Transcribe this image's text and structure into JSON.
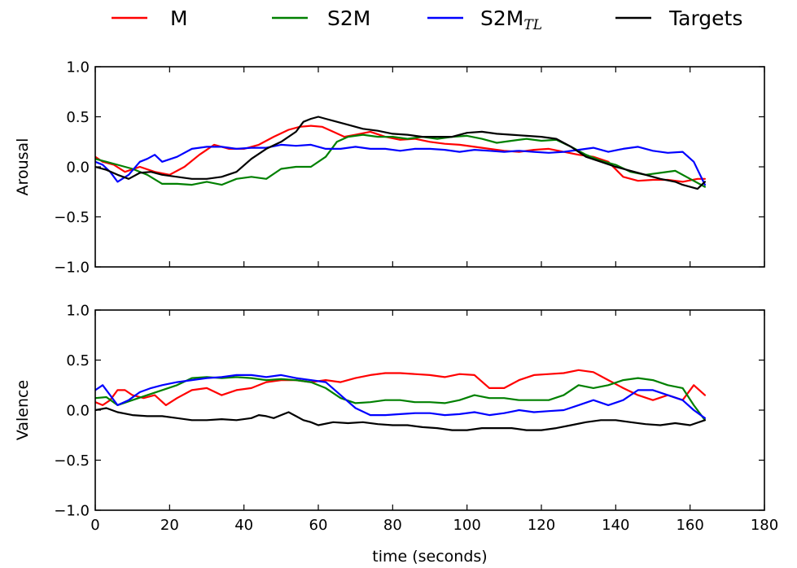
{
  "chart_data": {
    "type": "line",
    "xlabel": "time (seconds)",
    "xlim": [
      0,
      180
    ],
    "x_ticks": [
      0,
      20,
      40,
      60,
      80,
      100,
      120,
      140,
      160,
      180
    ],
    "grid": false,
    "legend": {
      "placement": "top",
      "entries": [
        {
          "key": "M",
          "label": "M",
          "color": "#ff0000"
        },
        {
          "key": "S2M",
          "label": "S2M",
          "color": "#008000"
        },
        {
          "key": "S2M_TL",
          "label": "S2M",
          "subscript": "TL",
          "color": "#0000ff"
        },
        {
          "key": "Targets",
          "label": "Targets",
          "color": "#000000"
        }
      ]
    },
    "panels": [
      {
        "ylabel": "Arousal",
        "ylim": [
          -1.0,
          1.0
        ],
        "y_ticks": [
          -1.0,
          -0.5,
          0.0,
          0.5,
          1.0
        ],
        "y_tick_labels": [
          "−1.0",
          "−0.5",
          "0.0",
          "0.5",
          "1.0"
        ],
        "show_x_tick_labels": false,
        "series": [
          {
            "key": "M",
            "color": "#ff0000",
            "x": [
              0,
              2,
              5,
              8,
              12,
              16,
              20,
              24,
              28,
              32,
              36,
              40,
              44,
              48,
              52,
              55,
              58,
              61,
              64,
              67,
              70,
              74,
              78,
              82,
              86,
              90,
              94,
              98,
              102,
              106,
              110,
              114,
              118,
              122,
              126,
              130,
              134,
              138,
              142,
              146,
              150,
              154,
              158,
              162,
              164
            ],
            "y": [
              0.1,
              0.05,
              0.02,
              -0.05,
              0.0,
              -0.05,
              -0.08,
              0.0,
              0.12,
              0.22,
              0.18,
              0.18,
              0.22,
              0.3,
              0.37,
              0.4,
              0.41,
              0.4,
              0.35,
              0.3,
              0.32,
              0.35,
              0.3,
              0.27,
              0.28,
              0.25,
              0.23,
              0.22,
              0.2,
              0.18,
              0.16,
              0.15,
              0.17,
              0.18,
              0.15,
              0.12,
              0.1,
              0.05,
              -0.1,
              -0.14,
              -0.13,
              -0.13,
              -0.15,
              -0.12,
              -0.12
            ]
          },
          {
            "key": "S2M",
            "color": "#008000",
            "x": [
              0,
              3,
              6,
              10,
              14,
              18,
              22,
              26,
              30,
              34,
              38,
              42,
              46,
              50,
              54,
              58,
              62,
              65,
              68,
              72,
              76,
              80,
              84,
              88,
              92,
              96,
              100,
              104,
              108,
              112,
              116,
              120,
              124,
              128,
              132,
              136,
              140,
              144,
              148,
              152,
              156,
              160,
              164
            ],
            "y": [
              0.08,
              0.05,
              0.02,
              -0.02,
              -0.08,
              -0.17,
              -0.17,
              -0.18,
              -0.15,
              -0.18,
              -0.12,
              -0.1,
              -0.12,
              -0.02,
              0.0,
              0.0,
              0.1,
              0.25,
              0.3,
              0.32,
              0.3,
              0.3,
              0.28,
              0.3,
              0.28,
              0.3,
              0.31,
              0.28,
              0.24,
              0.26,
              0.28,
              0.26,
              0.27,
              0.2,
              0.12,
              0.06,
              0.02,
              -0.05,
              -0.08,
              -0.06,
              -0.04,
              -0.12,
              -0.2
            ]
          },
          {
            "key": "S2M_TL",
            "color": "#0000ff",
            "x": [
              0,
              2,
              4,
              6,
              9,
              12,
              14,
              16,
              18,
              22,
              26,
              30,
              34,
              38,
              42,
              46,
              50,
              54,
              58,
              62,
              66,
              70,
              74,
              78,
              82,
              86,
              90,
              94,
              98,
              102,
              106,
              110,
              114,
              118,
              122,
              126,
              130,
              134,
              138,
              142,
              146,
              150,
              154,
              158,
              161,
              164
            ],
            "y": [
              0.05,
              0.02,
              -0.05,
              -0.15,
              -0.08,
              0.05,
              0.08,
              0.12,
              0.05,
              0.1,
              0.18,
              0.2,
              0.2,
              0.18,
              0.19,
              0.19,
              0.22,
              0.21,
              0.22,
              0.18,
              0.18,
              0.2,
              0.18,
              0.18,
              0.16,
              0.18,
              0.18,
              0.17,
              0.15,
              0.17,
              0.16,
              0.15,
              0.16,
              0.15,
              0.14,
              0.15,
              0.17,
              0.19,
              0.15,
              0.18,
              0.2,
              0.16,
              0.14,
              0.15,
              0.05,
              -0.18
            ]
          },
          {
            "key": "Targets",
            "color": "#000000",
            "x": [
              0,
              3,
              6,
              9,
              12,
              15,
              18,
              22,
              26,
              30,
              34,
              38,
              42,
              46,
              50,
              54,
              56,
              58,
              60,
              62,
              64,
              68,
              72,
              76,
              80,
              84,
              88,
              92,
              96,
              100,
              104,
              108,
              112,
              116,
              120,
              124,
              128,
              132,
              136,
              140,
              144,
              148,
              152,
              156,
              158,
              160,
              162,
              164
            ],
            "y": [
              0.0,
              -0.03,
              -0.08,
              -0.12,
              -0.06,
              -0.05,
              -0.08,
              -0.1,
              -0.12,
              -0.12,
              -0.1,
              -0.05,
              0.08,
              0.18,
              0.25,
              0.35,
              0.45,
              0.48,
              0.5,
              0.48,
              0.46,
              0.42,
              0.38,
              0.36,
              0.33,
              0.32,
              0.3,
              0.3,
              0.3,
              0.34,
              0.35,
              0.33,
              0.32,
              0.31,
              0.3,
              0.28,
              0.2,
              0.1,
              0.05,
              0.0,
              -0.04,
              -0.08,
              -0.12,
              -0.15,
              -0.18,
              -0.2,
              -0.22,
              -0.15
            ]
          }
        ]
      },
      {
        "ylabel": "Valence",
        "ylim": [
          -1.0,
          1.0
        ],
        "y_ticks": [
          -1.0,
          -0.5,
          0.0,
          0.5,
          1.0
        ],
        "y_tick_labels": [
          "−1.0",
          "−0.5",
          "0.0",
          "0.5",
          "1.0"
        ],
        "show_x_tick_labels": true,
        "x_tick_labels": [
          "0",
          "20",
          "40",
          "60",
          "80",
          "100",
          "120",
          "140",
          "160",
          "180"
        ],
        "series": [
          {
            "key": "M",
            "color": "#ff0000",
            "x": [
              0,
              2,
              4,
              6,
              8,
              10,
              13,
              16,
              19,
              22,
              26,
              30,
              34,
              38,
              42,
              46,
              50,
              54,
              58,
              62,
              66,
              70,
              74,
              78,
              82,
              86,
              90,
              94,
              98,
              102,
              106,
              110,
              114,
              118,
              122,
              126,
              130,
              134,
              138,
              142,
              146,
              150,
              154,
              158,
              161,
              164
            ],
            "y": [
              0.08,
              0.05,
              0.1,
              0.2,
              0.2,
              0.15,
              0.12,
              0.15,
              0.05,
              0.12,
              0.2,
              0.22,
              0.15,
              0.2,
              0.22,
              0.28,
              0.3,
              0.3,
              0.28,
              0.3,
              0.28,
              0.32,
              0.35,
              0.37,
              0.37,
              0.36,
              0.35,
              0.33,
              0.36,
              0.35,
              0.22,
              0.22,
              0.3,
              0.35,
              0.36,
              0.37,
              0.4,
              0.38,
              0.3,
              0.22,
              0.15,
              0.1,
              0.15,
              0.1,
              0.25,
              0.15
            ]
          },
          {
            "key": "S2M",
            "color": "#008000",
            "x": [
              0,
              3,
              6,
              10,
              14,
              18,
              22,
              26,
              30,
              34,
              38,
              42,
              46,
              50,
              54,
              58,
              62,
              66,
              70,
              74,
              78,
              82,
              86,
              90,
              94,
              98,
              102,
              106,
              110,
              114,
              118,
              122,
              126,
              130,
              134,
              138,
              142,
              146,
              150,
              154,
              158,
              161,
              164
            ],
            "y": [
              0.12,
              0.13,
              0.05,
              0.1,
              0.15,
              0.2,
              0.25,
              0.32,
              0.33,
              0.32,
              0.33,
              0.32,
              0.3,
              0.31,
              0.3,
              0.28,
              0.22,
              0.12,
              0.07,
              0.08,
              0.1,
              0.1,
              0.08,
              0.08,
              0.07,
              0.1,
              0.15,
              0.12,
              0.12,
              0.1,
              0.1,
              0.1,
              0.15,
              0.25,
              0.22,
              0.25,
              0.3,
              0.32,
              0.3,
              0.25,
              0.22,
              0.05,
              -0.1
            ]
          },
          {
            "key": "S2M_TL",
            "color": "#0000ff",
            "x": [
              0,
              2,
              4,
              6,
              9,
              12,
              15,
              18,
              22,
              26,
              30,
              34,
              38,
              42,
              46,
              50,
              54,
              58,
              62,
              66,
              70,
              74,
              78,
              82,
              86,
              90,
              94,
              98,
              102,
              106,
              110,
              114,
              118,
              122,
              126,
              130,
              134,
              138,
              142,
              146,
              150,
              154,
              158,
              161,
              164
            ],
            "y": [
              0.2,
              0.25,
              0.15,
              0.05,
              0.1,
              0.18,
              0.22,
              0.25,
              0.28,
              0.3,
              0.32,
              0.33,
              0.35,
              0.35,
              0.33,
              0.35,
              0.32,
              0.3,
              0.28,
              0.15,
              0.02,
              -0.05,
              -0.05,
              -0.04,
              -0.03,
              -0.03,
              -0.05,
              -0.04,
              -0.02,
              -0.05,
              -0.03,
              0.0,
              -0.02,
              -0.01,
              0.0,
              0.05,
              0.1,
              0.05,
              0.1,
              0.2,
              0.2,
              0.15,
              0.1,
              0.0,
              -0.08
            ]
          },
          {
            "key": "Targets",
            "color": "#000000",
            "x": [
              0,
              3,
              6,
              10,
              14,
              18,
              22,
              26,
              30,
              34,
              38,
              42,
              44,
              46,
              48,
              50,
              52,
              54,
              56,
              58,
              60,
              64,
              68,
              72,
              76,
              80,
              84,
              88,
              92,
              96,
              100,
              104,
              108,
              112,
              116,
              120,
              124,
              128,
              132,
              136,
              140,
              144,
              148,
              152,
              156,
              160,
              164
            ],
            "y": [
              0.0,
              0.02,
              -0.02,
              -0.05,
              -0.06,
              -0.06,
              -0.08,
              -0.1,
              -0.1,
              -0.09,
              -0.1,
              -0.08,
              -0.05,
              -0.06,
              -0.08,
              -0.05,
              -0.02,
              -0.06,
              -0.1,
              -0.12,
              -0.15,
              -0.12,
              -0.13,
              -0.12,
              -0.14,
              -0.15,
              -0.15,
              -0.17,
              -0.18,
              -0.2,
              -0.2,
              -0.18,
              -0.18,
              -0.18,
              -0.2,
              -0.2,
              -0.18,
              -0.15,
              -0.12,
              -0.1,
              -0.1,
              -0.12,
              -0.14,
              -0.15,
              -0.13,
              -0.15,
              -0.1
            ]
          }
        ]
      }
    ]
  }
}
